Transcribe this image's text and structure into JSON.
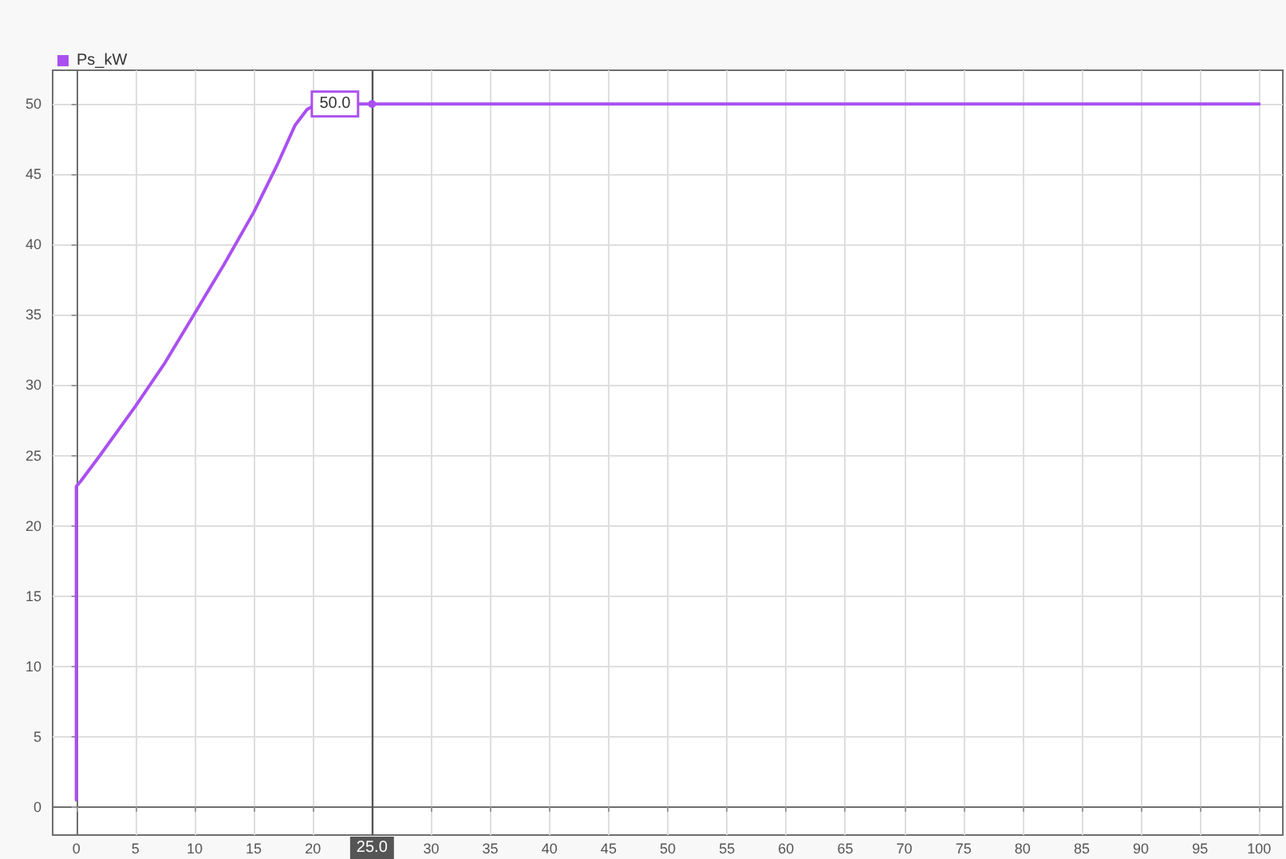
{
  "chart_data": {
    "type": "line",
    "series": [
      {
        "name": "Ps_kW",
        "color": "#aa50f0",
        "x": [
          0,
          0,
          0.4,
          2,
          5,
          7.5,
          10,
          12.5,
          15,
          17,
          18.5,
          19.5,
          20.3,
          100
        ],
        "values": [
          0.5,
          22.8,
          23.2,
          25,
          28.5,
          31.6,
          35.1,
          38.6,
          42.3,
          45.7,
          48.5,
          49.6,
          50,
          50
        ]
      }
    ],
    "xlim": [
      -2,
      102
    ],
    "ylim": [
      -2,
      52.4
    ],
    "xticks": [
      0,
      5,
      10,
      15,
      20,
      {
        "value": 25,
        "label": null
      },
      30,
      35,
      40,
      45,
      50,
      55,
      60,
      65,
      70,
      75,
      80,
      85,
      90,
      95,
      100
    ],
    "yticks": [
      0,
      5,
      10,
      15,
      20,
      25,
      30,
      35,
      40,
      45,
      50
    ],
    "grid": true,
    "legend": "top left",
    "marker": "none",
    "line_style": "solid",
    "ref_lines": [
      {
        "axis": "x",
        "value": 25,
        "label": "25.0",
        "color": "#555555"
      }
    ],
    "annotations": [
      {
        "text": "50.0",
        "x": 25,
        "y": 50
      }
    ]
  }
}
